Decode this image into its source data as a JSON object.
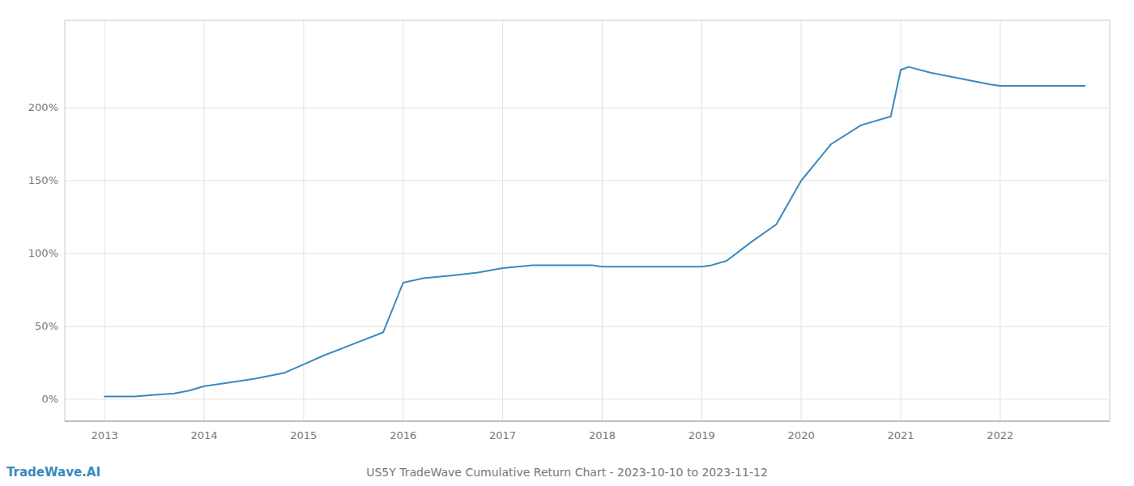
{
  "chart_data": {
    "type": "line",
    "title": "US5Y TradeWave Cumulative Return Chart - 2023-10-10 to 2023-11-12",
    "annotations": [
      "TradeWave.AI"
    ],
    "color": "#3a8abf",
    "x": [
      2013.0,
      2013.15,
      2013.3,
      2013.5,
      2013.7,
      2013.85,
      2014.0,
      2014.2,
      2014.5,
      2014.8,
      2015.0,
      2015.2,
      2015.5,
      2015.8,
      2016.0,
      2016.2,
      2016.5,
      2016.75,
      2017.0,
      2017.3,
      2017.6,
      2017.9,
      2018.0,
      2018.3,
      2018.6,
      2018.9,
      2019.0,
      2019.1,
      2019.25,
      2019.5,
      2019.75,
      2020.0,
      2020.3,
      2020.6,
      2020.9,
      2021.0,
      2021.08,
      2021.3,
      2021.6,
      2021.9,
      2022.0,
      2022.5,
      2022.85
    ],
    "values": [
      2,
      2,
      2,
      3,
      4,
      6,
      9,
      11,
      14,
      18,
      24,
      30,
      38,
      46,
      80,
      83,
      85,
      87,
      90,
      92,
      92,
      92,
      91,
      91,
      91,
      91,
      91,
      92,
      95,
      108,
      120,
      150,
      175,
      188,
      194,
      226,
      228,
      224,
      220,
      216,
      215,
      215,
      215
    ],
    "xlim": [
      2012.6,
      2023.1
    ],
    "xticks": [
      2013,
      2014,
      2015,
      2016,
      2017,
      2018,
      2019,
      2020,
      2021,
      2022
    ],
    "ylim": [
      -15,
      260
    ],
    "yticks": [
      {
        "value": 0,
        "label": "0%"
      },
      {
        "value": 50,
        "label": "50%"
      },
      {
        "value": 100,
        "label": "100%"
      },
      {
        "value": 150,
        "label": "150%"
      },
      {
        "value": 200,
        "label": "200%"
      }
    ],
    "grid": true
  }
}
